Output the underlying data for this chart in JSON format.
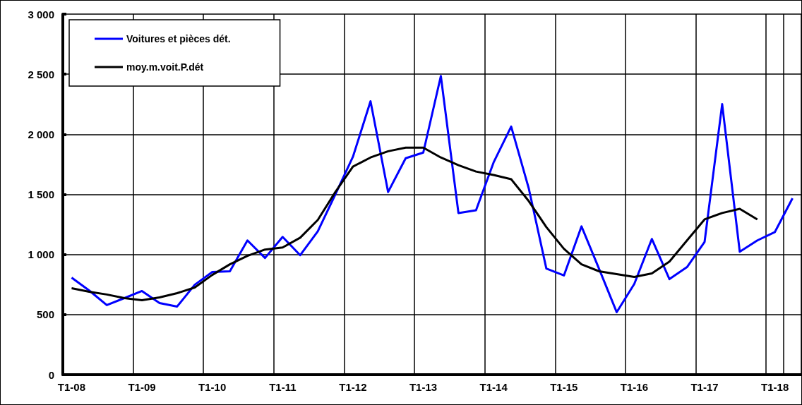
{
  "chart_data": {
    "type": "line",
    "categories": [
      "T1-08",
      null,
      null,
      null,
      "T1-09",
      null,
      null,
      null,
      "T1-10",
      null,
      null,
      null,
      "T1-11",
      null,
      null,
      null,
      "T1-12",
      null,
      null,
      null,
      "T1-13",
      null,
      null,
      null,
      "T1-14",
      null,
      null,
      null,
      "T1-15",
      null,
      null,
      null,
      "T1-16",
      null,
      null,
      null,
      "T1-17",
      null,
      null,
      null,
      "T1-18",
      null
    ],
    "series": [
      {
        "name": "Voitures et pièces dét.",
        "color": "#0000ff",
        "values": [
          807,
          700,
          579,
          637,
          696,
          596,
          567,
          748,
          854,
          860,
          1117,
          971,
          1146,
          994,
          1193,
          1500,
          1813,
          2275,
          1520,
          1801,
          1848,
          2485,
          1345,
          1368,
          1766,
          2064,
          1550,
          883,
          825,
          1234,
          880,
          520,
          754,
          1129,
          795,
          895,
          1105,
          2251,
          1023,
          1117,
          1187,
          1468
        ]
      },
      {
        "name": "moy.m.voit.P.dét",
        "color": "#000000",
        "values": [
          719,
          690,
          667,
          637,
          620,
          643,
          678,
          725,
          830,
          918,
          988,
          1041,
          1058,
          1140,
          1287,
          1520,
          1731,
          1807,
          1859,
          1889,
          1889,
          1807,
          1743,
          1690,
          1661,
          1626,
          1444,
          1228,
          1047,
          918,
          860,
          836,
          813,
          842,
          941,
          1117,
          1292,
          1345,
          1380,
          1292,
          null,
          null
        ]
      }
    ],
    "ylim": [
      0,
      3000
    ],
    "yticks": [
      {
        "value": 0,
        "label": "0"
      },
      {
        "value": 500,
        "label": "500"
      },
      {
        "value": 1000,
        "label": "1 000"
      },
      {
        "value": 1500,
        "label": "1 500"
      },
      {
        "value": 2000,
        "label": "2 000"
      },
      {
        "value": 2500,
        "label": "2 500"
      },
      {
        "value": 3000,
        "label": "3 000"
      }
    ],
    "grid": true,
    "legend": "top left",
    "marker": "none",
    "line_style": "solid"
  }
}
